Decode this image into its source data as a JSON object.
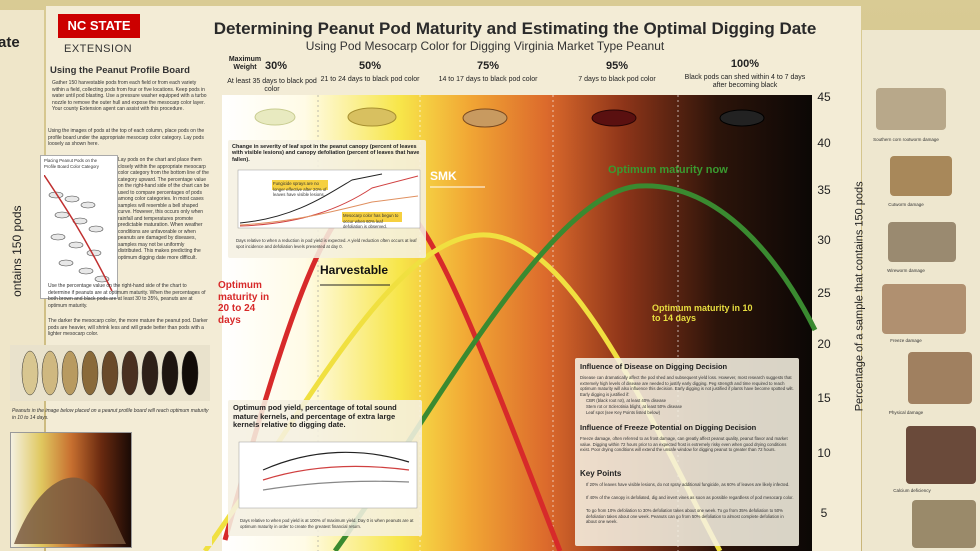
{
  "edge": {
    "left_title": "ate",
    "left_axis": "ontains 150 pods"
  },
  "header": {
    "logo": "NC STATE",
    "logo_sub": "EXTENSION",
    "title": "Determining Peanut Pod Maturity and Estimating the Optimal Digging Date",
    "subtitle": "Using Pod Mesocarp Color for Digging Virginia Market Type Peanut"
  },
  "max_weight_label": "Maximum Weight",
  "stages": [
    {
      "percent": "30%",
      "note": "At least 35 days to black pod color"
    },
    {
      "percent": "50%",
      "note": "21 to 24 days to black pod color"
    },
    {
      "percent": "75%",
      "note": "14 to 17 days to black pod color"
    },
    {
      "percent": "95%",
      "note": "7 days to black pod color"
    },
    {
      "percent": "100%",
      "note": "Black pods can shed within 4 to 7 days after becoming black"
    }
  ],
  "axis": {
    "label": "Percentage of a sample that contains 150 pods",
    "ticks": [
      "45",
      "40",
      "35",
      "30",
      "25",
      "20",
      "15",
      "10",
      "5"
    ]
  },
  "curve_labels": {
    "red": "Optimum maturity in 20 to 24 days",
    "harvestable": "Harvestable",
    "smk": "SMK",
    "green": "Optimum maturity now",
    "yellow": "Optimum maturity in 10 to 14 days"
  },
  "left_panel": {
    "heading": "Using the Peanut Profile Board",
    "intro": "Gather 150 harvestable pods from each field or from each variety within a field, collecting pods from four or five locations. Keep pods in water until pod blasting. Use a pressure washer equipped with a turbo nozzle to remove the outer hull and expose the mesocarp color layer. Your county Extension agent can assist with this procedure.",
    "step": "Using the images of pods at the top of each column, place pods on the profile board under the appropriate mesocarp color category. Lay pods loosely as shown here.",
    "figure_caption": "Placing Peanut Pods on the Profile Board Color Category",
    "side_text": "Lay pods on the chart and place them closely within the appropriate mesocarp color category from the bottom line of the category upward. The percentage value on the right-hand side of the chart can be used to compare percentages of pods among color categories. In most cases samples will resemble a bell shaped curve. However, this occurs only when rainfall and temperatures promote predictable maturation. When weather conditions are unfavorable or when peanuts are damaged by diseases, samples may not be uniformly distributed. This makes predicting the optimum digging date more difficult.",
    "percentage": "Use the percentage value on the right-hand side of the chart to determine if peanuts are at optimum maturity. When the percentages of both brown and black pods are at least 30 to 35%, peanuts are at optimum maturity.",
    "darker": "The darker the mesocarp color, the more mature the peanut pod. Darker pods are heavier, will shrink less and will grade better than pods with a lighter mesocarp color.",
    "caption": "Peanuts in the image below placed on a peanut profile board will reach optimum maturity in 10 to 14 days."
  },
  "leaf_spot_box": {
    "title": "Change in severity of leaf spot in the peanut canopy (percent of leaves with visible lesions) and canopy defoliation (percent of leaves that have fallen).",
    "note1": "Fungicide sprays are no longer effective after 20% of leaves have visible lesions.",
    "note2": "Mesocarp color has begun to occur when 60% leaf defoliation is observed.",
    "caption": "Days relative to when a reduction in pod yield is expected. A yield reduction often occurs at leaf spot incidence and defoliation levels presented at day 0."
  },
  "yield_box": {
    "title": "Optimum pod yield, percentage of total sound mature kernels, and percentage of extra large kernels relative to digging date.",
    "caption": "Days relative to when pod yield is at 100% of maximum yield. Day 0 is when peanuts are at optimum maturity in order to create the greatest financial return."
  },
  "disease_box": {
    "heading1": "Influence of Disease on Digging Decision",
    "text1": "Disease can dramatically affect the pod shed and subsequent yield loss. However, most research suggests that extremely high levels of disease are needed to justify early digging. Peg strength and time required to reach optimum maturity will also influence this decision. Early digging is not justified if plants have become spotted wilt. Early digging is justified if:",
    "bullets": [
      "CBR (black root rot), at least 40% disease",
      "Stem rot or Sclerotinia blight, at least 50% disease",
      "Leaf spot (see Key Points listed below)"
    ],
    "heading2": "Influence of Freeze Potential on Digging Decision",
    "text2": "Freeze damage, often referred to as frost damage, can greatly affect peanut quality, peanut flavor and market value. Digging within 72 hours prior to an expected frost is extremely risky even when good drying conditions exist. Poor drying conditions will extend the unsafe window for digging peanut to greater than 72 hours.",
    "heading3": "Key Points",
    "points": [
      "If 20% of leaves have visible lesions, do not spray additional fungicide, as 60% of leaves are likely infected.",
      "If 40% of the canopy is defoliated, dig and invert vines as soon as possible regardless of pod mesocarp color.",
      "To go from 10% defoliation to 30% defoliation takes about one week. To go from 35% defoliation to 50% defoliation takes about one week. Peanuts can go from 50% defoliation to almost complete defoliation in about one week."
    ]
  },
  "damage": [
    "Southern corn rootworm damage",
    "Cutworm damage",
    "Wireworm damage",
    "Freeze damage",
    "Physical damage",
    "Calcium deficiency"
  ]
}
